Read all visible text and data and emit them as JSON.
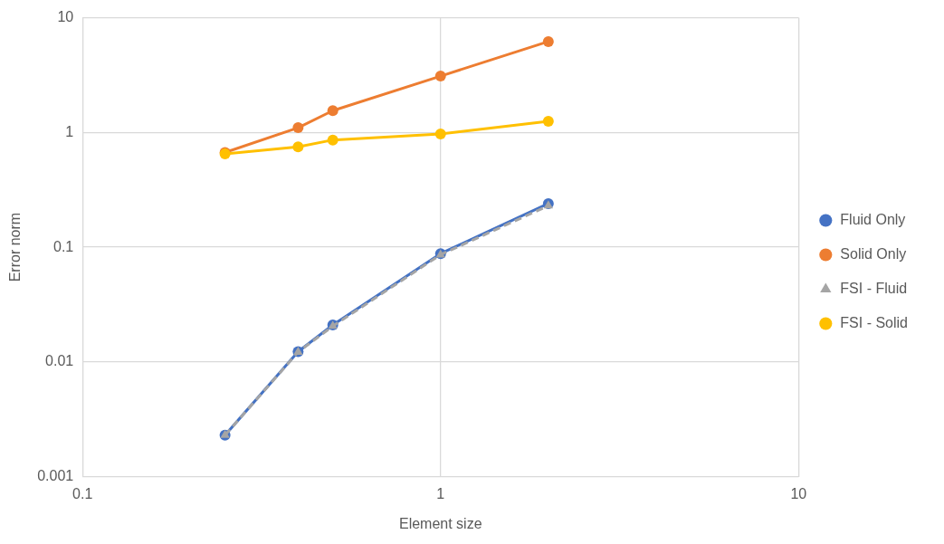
{
  "chart_data": {
    "type": "line",
    "xlabel": "Element size",
    "ylabel": "Error norm",
    "log": "xy",
    "grid": true,
    "legend": "right",
    "x": [
      0.25,
      0.4,
      0.5,
      1,
      2
    ],
    "xlim": [
      0.1,
      10
    ],
    "xticks": [
      0.1,
      1,
      10
    ],
    "ylim": [
      0.001,
      10
    ],
    "yticks": [
      0.001,
      0.01,
      0.1,
      1,
      10
    ],
    "series": [
      {
        "name": "Fluid Only",
        "color": "#4472c4",
        "marker": "circle",
        "line_style": "solid",
        "values": [
          0.0023,
          0.0123,
          0.021,
          0.088,
          0.24
        ]
      },
      {
        "name": "Solid Only",
        "color": "#ed7d31",
        "marker": "circle",
        "line_style": "solid",
        "values": [
          0.67,
          1.1,
          1.55,
          3.1,
          6.2
        ]
      },
      {
        "name": "FSI - Fluid",
        "color": "#a5a5a5",
        "marker": "triangle",
        "line_style": "dashed",
        "values": [
          0.0023,
          0.0122,
          0.0205,
          0.086,
          0.23
        ]
      },
      {
        "name": "FSI - Solid",
        "color": "#ffc000",
        "marker": "circle",
        "line_style": "solid",
        "values": [
          0.65,
          0.75,
          0.86,
          0.97,
          1.25
        ]
      }
    ]
  }
}
